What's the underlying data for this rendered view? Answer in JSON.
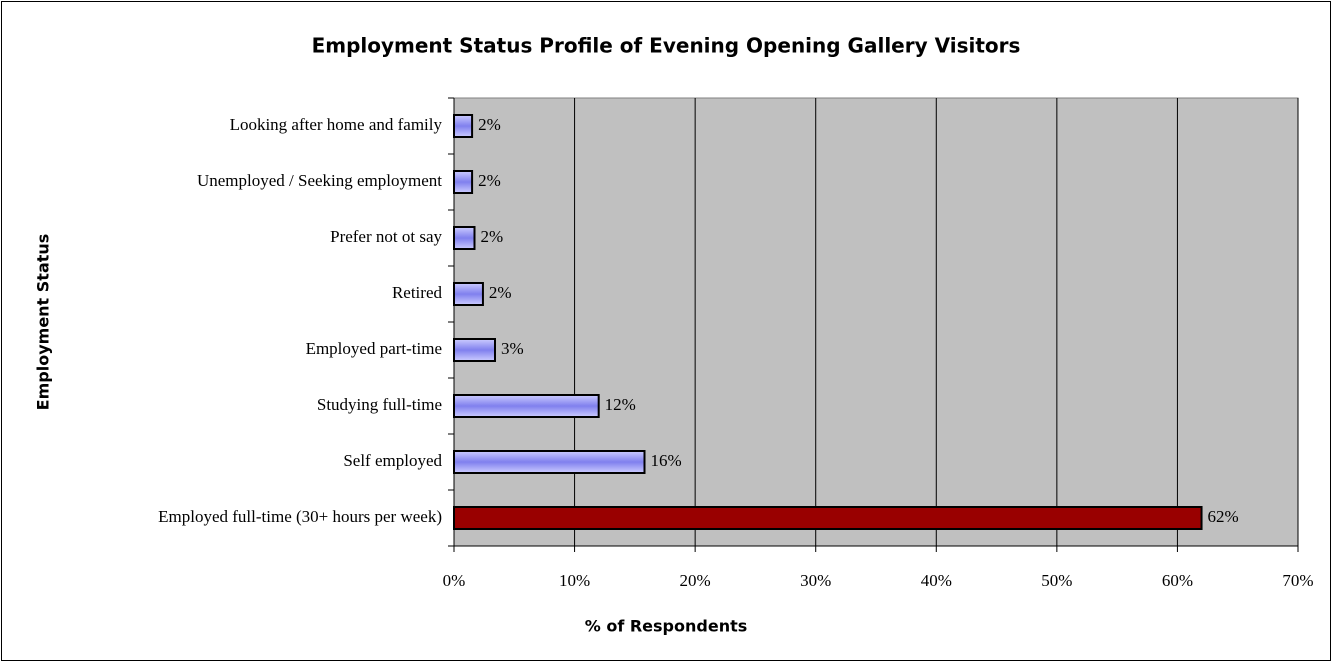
{
  "chart_data": {
    "type": "bar",
    "orientation": "horizontal",
    "title": "Employment Status Profile of Evening Opening Gallery Visitors",
    "x_label": "% of Respondents",
    "y_label": "Employment Status",
    "categories": [
      "Looking after home and family",
      "Unemployed / Seeking employment",
      "Prefer not ot say",
      "Retired",
      "Employed part-time",
      "Studying full-time",
      "Self employed",
      "Employed full-time (30+ hours per week)"
    ],
    "values": [
      1.5,
      1.5,
      1.7,
      2.4,
      3.4,
      12,
      15.8,
      62
    ],
    "value_labels": [
      "2%",
      "2%",
      "2%",
      "2%",
      "3%",
      "12%",
      "16%",
      "62%"
    ],
    "colors": [
      "#9999ff",
      "#9999ff",
      "#9999ff",
      "#9999ff",
      "#9999ff",
      "#9999ff",
      "#9999ff",
      "#990000"
    ],
    "xlim": [
      0,
      70
    ],
    "xticks": [
      {
        "value": 0,
        "label": "0%"
      },
      {
        "value": 10,
        "label": "10%"
      },
      {
        "value": 20,
        "label": "20%"
      },
      {
        "value": 30,
        "label": "30%"
      },
      {
        "value": 40,
        "label": "40%"
      },
      {
        "value": 50,
        "label": "50%"
      },
      {
        "value": 60,
        "label": "60%"
      },
      {
        "value": 70,
        "label": "70%"
      }
    ],
    "grid": true,
    "plot_background": "#c0c0c0"
  }
}
